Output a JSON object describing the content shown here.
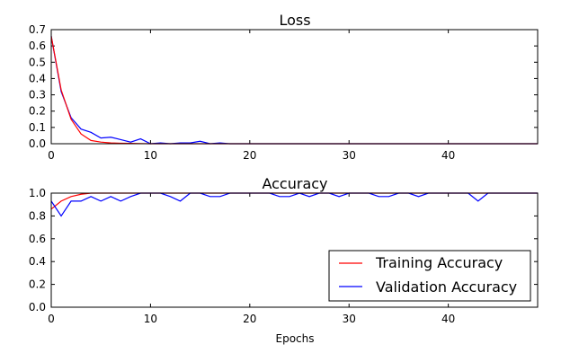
{
  "chart_data": [
    {
      "type": "line",
      "title": "Loss",
      "xlabel": "",
      "ylabel": "",
      "xlim": [
        0,
        49
      ],
      "ylim": [
        0,
        0.7
      ],
      "xticks": [
        0,
        10,
        20,
        30,
        40
      ],
      "yticks": [
        0.0,
        0.1,
        0.2,
        0.3,
        0.4,
        0.5,
        0.6,
        0.7
      ],
      "xtick_labels": [
        "0",
        "10",
        "20",
        "30",
        "40"
      ],
      "ytick_labels": [
        "0.0",
        "0.1",
        "0.2",
        "0.3",
        "0.4",
        "0.5",
        "0.6",
        "0.7"
      ],
      "grid": false,
      "legend": null,
      "series": [
        {
          "color": "#0000ff",
          "x": [
            0,
            1,
            2,
            3,
            4,
            5,
            6,
            7,
            8,
            9,
            10,
            11,
            12,
            13,
            14,
            15,
            16,
            17,
            18,
            19,
            20,
            21,
            22,
            23,
            24,
            25,
            26,
            27,
            28,
            29,
            30,
            31,
            32,
            33,
            34,
            35,
            36,
            37,
            38,
            39,
            40,
            41,
            42,
            43,
            44,
            45,
            46,
            47,
            48,
            49
          ],
          "y": [
            0.66,
            0.32,
            0.16,
            0.09,
            0.07,
            0.035,
            0.04,
            0.025,
            0.01,
            0.03,
            0.0,
            0.005,
            0.0,
            0.005,
            0.005,
            0.015,
            0.0,
            0.005,
            0.0,
            0,
            0,
            0,
            0,
            0,
            0,
            0,
            0,
            0,
            0,
            0,
            0,
            0,
            0,
            0,
            0,
            0,
            0,
            0,
            0,
            0,
            0,
            0,
            0,
            0,
            0,
            0,
            0,
            0,
            0,
            0
          ]
        },
        {
          "color": "#ff0000",
          "x": [
            0,
            1,
            2,
            3,
            4,
            5,
            6,
            7,
            8,
            9,
            10,
            11,
            12,
            13,
            14,
            15,
            16,
            17,
            18,
            19,
            20,
            21,
            22,
            23,
            24,
            25,
            26,
            27,
            28,
            29,
            30,
            31,
            32,
            33,
            34,
            35,
            36,
            37,
            38,
            39,
            40,
            41,
            42,
            43,
            44,
            45,
            46,
            47,
            48,
            49
          ],
          "y": [
            0.66,
            0.33,
            0.15,
            0.06,
            0.02,
            0.01,
            0.005,
            0.003,
            0.002,
            0.001,
            0,
            0,
            0,
            0,
            0,
            0,
            0,
            0,
            0,
            0,
            0,
            0,
            0,
            0,
            0,
            0,
            0,
            0,
            0,
            0,
            0,
            0,
            0,
            0,
            0,
            0,
            0,
            0,
            0,
            0,
            0,
            0,
            0,
            0,
            0,
            0,
            0,
            0,
            0,
            0
          ]
        }
      ]
    },
    {
      "type": "line",
      "title": "Accuracy",
      "xlabel": "Epochs",
      "ylabel": "",
      "xlim": [
        0,
        49
      ],
      "ylim": [
        0,
        1.0
      ],
      "xticks": [
        0,
        10,
        20,
        30,
        40
      ],
      "yticks": [
        0.0,
        0.2,
        0.4,
        0.6,
        0.8,
        1.0
      ],
      "xtick_labels": [
        "0",
        "10",
        "20",
        "30",
        "40"
      ],
      "ytick_labels": [
        "0.0",
        "0.2",
        "0.4",
        "0.6",
        "0.8",
        "1.0"
      ],
      "grid": false,
      "legend": "lower-right",
      "series": [
        {
          "name": "Training Accuracy",
          "color": "#ff0000",
          "x": [
            0,
            1,
            2,
            3,
            4,
            5,
            6,
            7,
            8,
            9,
            10,
            11,
            12,
            13,
            14,
            15,
            16,
            17,
            18,
            19,
            20,
            21,
            22,
            23,
            24,
            25,
            26,
            27,
            28,
            29,
            30,
            31,
            32,
            33,
            34,
            35,
            36,
            37,
            38,
            39,
            40,
            41,
            42,
            43,
            44,
            45,
            46,
            47,
            48,
            49
          ],
          "y": [
            0.86,
            0.93,
            0.97,
            0.99,
            1.0,
            1.0,
            1.0,
            1.0,
            1.0,
            1.0,
            1.0,
            1.0,
            1.0,
            1.0,
            1.0,
            1.0,
            1.0,
            1.0,
            1.0,
            1.0,
            1.0,
            1.0,
            1.0,
            1.0,
            1.0,
            1.0,
            1.0,
            1.0,
            1.0,
            1.0,
            1.0,
            1.0,
            1.0,
            1.0,
            1.0,
            1.0,
            1.0,
            1.0,
            1.0,
            1.0,
            1.0,
            1.0,
            1.0,
            1.0,
            1.0,
            1.0,
            1.0,
            1.0,
            1.0,
            1.0
          ]
        },
        {
          "name": "Validation Accuracy",
          "color": "#0000ff",
          "x": [
            0,
            1,
            2,
            3,
            4,
            5,
            6,
            7,
            8,
            9,
            10,
            11,
            12,
            13,
            14,
            15,
            16,
            17,
            18,
            19,
            20,
            21,
            22,
            23,
            24,
            25,
            26,
            27,
            28,
            29,
            30,
            31,
            32,
            33,
            34,
            35,
            36,
            37,
            38,
            39,
            40,
            41,
            42,
            43,
            44,
            45,
            46,
            47,
            48,
            49
          ],
          "y": [
            0.93,
            0.8,
            0.93,
            0.93,
            0.97,
            0.93,
            0.97,
            0.93,
            0.97,
            1.0,
            1.0,
            1.0,
            0.97,
            0.93,
            1.0,
            1.0,
            0.97,
            0.97,
            1.0,
            1.0,
            1.0,
            1.0,
            1.0,
            0.97,
            0.97,
            1.0,
            0.97,
            1.0,
            1.0,
            0.97,
            1.0,
            1.0,
            1.0,
            0.97,
            0.97,
            1.0,
            1.0,
            0.97,
            1.0,
            1.0,
            1.0,
            1.0,
            1.0,
            0.93,
            1.0,
            1.0,
            1.0,
            1.0,
            1.0,
            1.0
          ]
        }
      ]
    }
  ]
}
